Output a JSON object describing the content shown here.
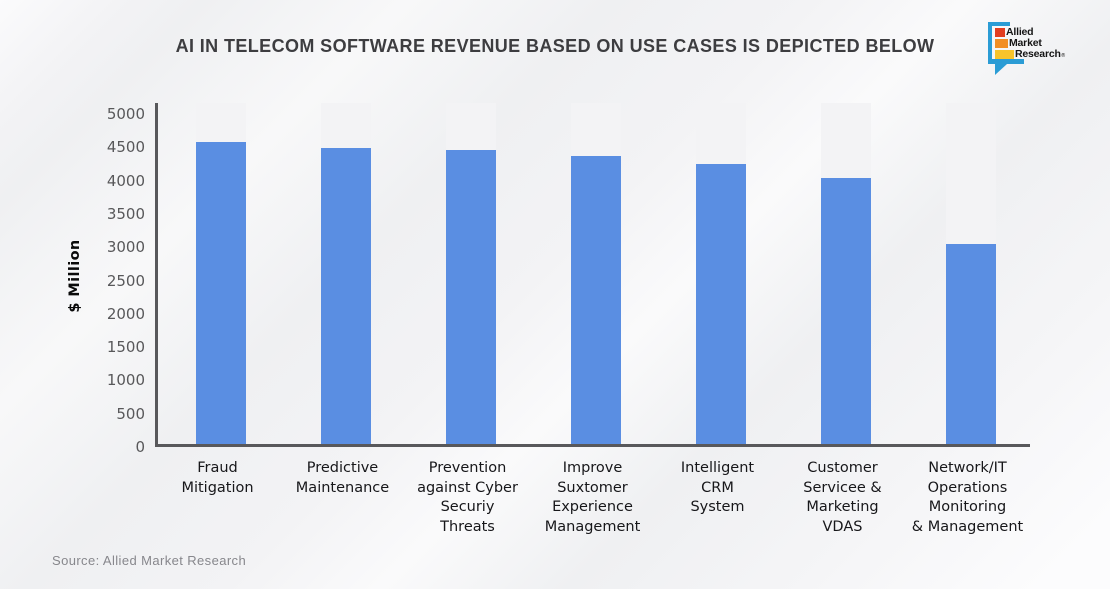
{
  "title": "AI IN TELECOM SOFTWARE REVENUE BASED ON USE CASES IS DEPICTED BELOW",
  "source": "Source: Allied Market Research",
  "logo": {
    "brand_lines": [
      {
        "text": "Allied",
        "square_color": "#e23d1f",
        "square_width": 10
      },
      {
        "text": "Market",
        "square_color": "#f28e25",
        "square_width": 13
      },
      {
        "text": "Research",
        "square_color": "#f7c42b",
        "square_width": 19
      }
    ],
    "registered_mark": "®",
    "bracket_color": "#2b9cd5"
  },
  "chart_data": {
    "type": "bar",
    "title": "AI IN TELECOM SOFTWARE REVENUE BASED ON USE CASES IS DEPICTED BELOW",
    "categories": [
      "Fraud\nMitigation",
      "Predictive\nMaintenance",
      "Prevention\nagainst Cyber\nSecuriy\nThreats",
      "Improve\nSuxtomer\nExperience\nManagement",
      "Intelligent\nCRM\nSystem",
      "Customer\nServicee &\nMarketing\nVDAS",
      "Network/IT\nOperations\nMonitoring\n& Management"
    ],
    "values": [
      4530,
      4450,
      4410,
      4330,
      4200,
      4000,
      3000
    ],
    "xlabel": "",
    "ylabel": "$ Million",
    "yticks": [
      0,
      500,
      1000,
      1500,
      2000,
      2500,
      3000,
      3500,
      4000,
      4500,
      5000
    ],
    "ylim": [
      0,
      5165
    ],
    "grid": false,
    "legend_position": "none",
    "bar_color": "#5a8ee2",
    "track_color": "#f3f3f5",
    "axis_color": "#58585b"
  }
}
